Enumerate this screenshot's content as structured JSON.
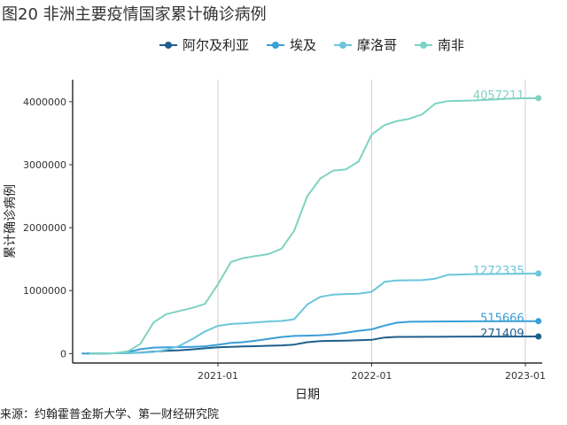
{
  "figure_title": "图20 非洲主要疫情国家累计确诊病例",
  "source": "来源：约翰霍普金斯大学、第一财经研究院",
  "chart_data": {
    "type": "line",
    "title": "",
    "xlabel": "日期",
    "ylabel": "累计确诊病例",
    "xlim": [
      "2020-01-22",
      "2023-02-10"
    ],
    "ylim": [
      -150000,
      4350000
    ],
    "x_ticks": [
      "2021-01-01",
      "2022-01-01",
      "2023-01-01"
    ],
    "x_tick_labels": [
      "2021-01",
      "2022-01",
      "2023-01"
    ],
    "y_ticks": [
      0,
      1000000,
      2000000,
      3000000,
      4000000
    ],
    "y_tick_labels": [
      "0",
      "1000000",
      "2000000",
      "3000000",
      "4000000"
    ],
    "grid": "vertical major only",
    "legend_position": "top",
    "series": [
      {
        "name": "阿尔及利亚",
        "color": "#1f5f8b",
        "end_label": "271409",
        "points": [
          [
            "2020-02-25",
            0
          ],
          [
            "2020-04-01",
            800
          ],
          [
            "2020-05-01",
            4000
          ],
          [
            "2020-06-01",
            9500
          ],
          [
            "2020-07-01",
            14000
          ],
          [
            "2020-08-01",
            32000
          ],
          [
            "2020-09-01",
            45000
          ],
          [
            "2020-10-01",
            52000
          ],
          [
            "2020-11-01",
            67000
          ],
          [
            "2020-12-01",
            84000
          ],
          [
            "2021-01-01",
            99000
          ],
          [
            "2021-02-01",
            107000
          ],
          [
            "2021-03-01",
            113000
          ],
          [
            "2021-04-01",
            117000
          ],
          [
            "2021-05-01",
            124000
          ],
          [
            "2021-06-01",
            130000
          ],
          [
            "2021-07-01",
            142000
          ],
          [
            "2021-08-01",
            180000
          ],
          [
            "2021-09-01",
            198000
          ],
          [
            "2021-10-01",
            203000
          ],
          [
            "2021-11-01",
            206000
          ],
          [
            "2021-12-01",
            211000
          ],
          [
            "2022-01-01",
            219000
          ],
          [
            "2022-02-01",
            255000
          ],
          [
            "2022-03-01",
            265000
          ],
          [
            "2022-06-01",
            266000
          ],
          [
            "2022-09-01",
            270000
          ],
          [
            "2022-12-01",
            271000
          ],
          [
            "2023-02-01",
            271409
          ]
        ]
      },
      {
        "name": "埃及",
        "color": "#3a9fd8",
        "end_label": "515666",
        "points": [
          [
            "2020-02-14",
            0
          ],
          [
            "2020-04-01",
            700
          ],
          [
            "2020-05-01",
            5500
          ],
          [
            "2020-06-01",
            25000
          ],
          [
            "2020-07-01",
            70000
          ],
          [
            "2020-08-01",
            94000
          ],
          [
            "2020-09-01",
            99000
          ],
          [
            "2020-10-01",
            103000
          ],
          [
            "2020-11-01",
            108000
          ],
          [
            "2020-12-01",
            116000
          ],
          [
            "2021-01-01",
            139000
          ],
          [
            "2021-02-01",
            169000
          ],
          [
            "2021-03-01",
            181000
          ],
          [
            "2021-04-01",
            205000
          ],
          [
            "2021-05-01",
            232000
          ],
          [
            "2021-06-01",
            263000
          ],
          [
            "2021-07-01",
            280000
          ],
          [
            "2021-08-01",
            285000
          ],
          [
            "2021-09-01",
            291000
          ],
          [
            "2021-10-01",
            305000
          ],
          [
            "2021-11-01",
            331000
          ],
          [
            "2021-12-01",
            362000
          ],
          [
            "2022-01-01",
            384000
          ],
          [
            "2022-02-01",
            445000
          ],
          [
            "2022-03-01",
            490000
          ],
          [
            "2022-04-01",
            505000
          ],
          [
            "2022-06-01",
            510000
          ],
          [
            "2022-09-01",
            513000
          ],
          [
            "2022-12-01",
            515000
          ],
          [
            "2023-02-01",
            515666
          ]
        ]
      },
      {
        "name": "摩洛哥",
        "color": "#6cc6dc",
        "end_label": "1272335",
        "points": [
          [
            "2020-03-02",
            0
          ],
          [
            "2020-04-01",
            700
          ],
          [
            "2020-05-01",
            4500
          ],
          [
            "2020-06-01",
            7800
          ],
          [
            "2020-07-01",
            12000
          ],
          [
            "2020-08-01",
            24000
          ],
          [
            "2020-09-01",
            62000
          ],
          [
            "2020-10-01",
            120000
          ],
          [
            "2020-11-01",
            230000
          ],
          [
            "2020-12-01",
            350000
          ],
          [
            "2021-01-01",
            440000
          ],
          [
            "2021-02-01",
            470000
          ],
          [
            "2021-03-01",
            480000
          ],
          [
            "2021-04-01",
            495000
          ],
          [
            "2021-05-01",
            510000
          ],
          [
            "2021-06-01",
            518000
          ],
          [
            "2021-07-01",
            545000
          ],
          [
            "2021-08-01",
            780000
          ],
          [
            "2021-09-01",
            900000
          ],
          [
            "2021-10-01",
            935000
          ],
          [
            "2021-11-01",
            945000
          ],
          [
            "2021-12-01",
            950000
          ],
          [
            "2022-01-01",
            980000
          ],
          [
            "2022-02-01",
            1140000
          ],
          [
            "2022-03-01",
            1160000
          ],
          [
            "2022-05-01",
            1166000
          ],
          [
            "2022-06-01",
            1190000
          ],
          [
            "2022-07-01",
            1250000
          ],
          [
            "2022-09-01",
            1262000
          ],
          [
            "2022-12-01",
            1268000
          ],
          [
            "2023-02-01",
            1272335
          ]
        ]
      },
      {
        "name": "南非",
        "color": "#7ed3c2",
        "end_label": "4057211",
        "points": [
          [
            "2020-03-05",
            0
          ],
          [
            "2020-04-01",
            1400
          ],
          [
            "2020-05-01",
            6000
          ],
          [
            "2020-06-01",
            35000
          ],
          [
            "2020-07-01",
            155000
          ],
          [
            "2020-08-01",
            495000
          ],
          [
            "2020-09-01",
            628000
          ],
          [
            "2020-10-01",
            675000
          ],
          [
            "2020-11-01",
            725000
          ],
          [
            "2020-12-01",
            790000
          ],
          [
            "2021-01-01",
            1100000
          ],
          [
            "2021-02-01",
            1455000
          ],
          [
            "2021-03-01",
            1515000
          ],
          [
            "2021-04-01",
            1550000
          ],
          [
            "2021-05-01",
            1580000
          ],
          [
            "2021-06-01",
            1665000
          ],
          [
            "2021-07-01",
            1950000
          ],
          [
            "2021-08-01",
            2500000
          ],
          [
            "2021-09-01",
            2780000
          ],
          [
            "2021-10-01",
            2905000
          ],
          [
            "2021-11-01",
            2925000
          ],
          [
            "2021-12-01",
            3050000
          ],
          [
            "2022-01-01",
            3480000
          ],
          [
            "2022-02-01",
            3630000
          ],
          [
            "2022-03-01",
            3690000
          ],
          [
            "2022-04-01",
            3730000
          ],
          [
            "2022-05-01",
            3800000
          ],
          [
            "2022-06-01",
            3970000
          ],
          [
            "2022-07-01",
            4010000
          ],
          [
            "2022-09-01",
            4020000
          ],
          [
            "2022-12-01",
            4050000
          ],
          [
            "2023-02-01",
            4057211
          ]
        ]
      }
    ]
  }
}
